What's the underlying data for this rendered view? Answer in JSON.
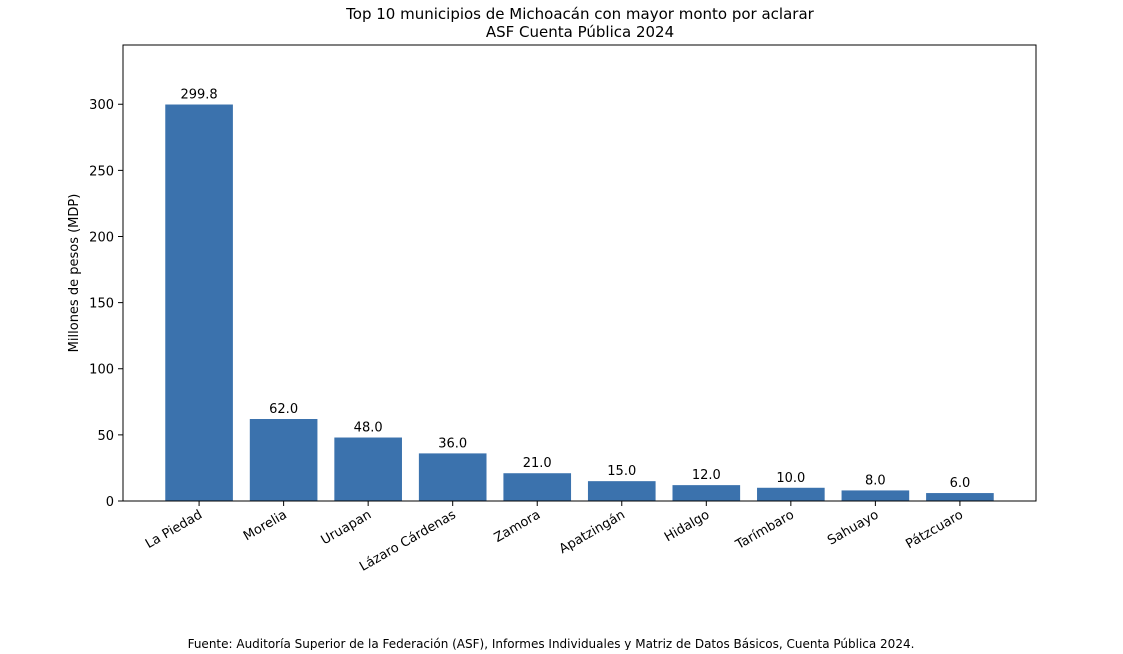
{
  "chart_data": {
    "type": "bar",
    "title": "Top 10 municipios de Michoacán con mayor monto por aclarar",
    "subtitle": "ASF Cuenta Pública 2024",
    "y_label": "Millones de pesos (MDP)",
    "source": "Fuente: Auditoría Superior de la Federación (ASF), Informes Individuales y Matriz de Datos Básicos, Cuenta Pública 2024.",
    "categories": [
      "La Piedad",
      "Morelia",
      "Uruapan",
      "Lázaro Cárdenas",
      "Zamora",
      "Apatzingán",
      "Hidalgo",
      "Tarímbaro",
      "Sahuayo",
      "Pátzcuaro"
    ],
    "values": [
      299.8,
      62,
      48,
      36,
      21,
      15,
      12,
      10,
      8,
      6
    ],
    "value_labels": [
      "299.8",
      "62.0",
      "48.0",
      "36.0",
      "21.0",
      "15.0",
      "12.0",
      "10.0",
      "8.0",
      "6.0"
    ],
    "color": "#3b72ad",
    "ylim": [
      0,
      344.8
    ],
    "yticks": [
      0,
      50,
      100,
      150,
      200,
      250,
      300
    ]
  }
}
